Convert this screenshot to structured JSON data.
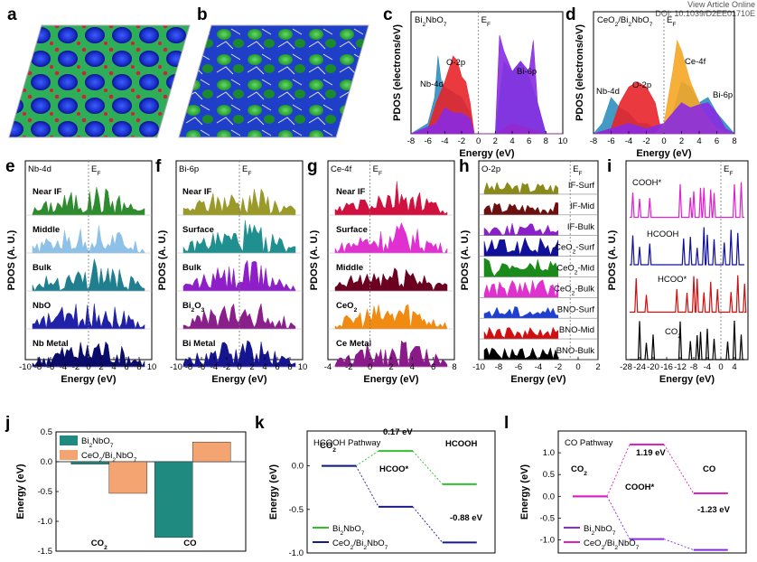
{
  "header": {
    "view_article": "View Article Online",
    "doi": "DOI: 10.1039/D2EE01710E"
  },
  "panels": {
    "a": "a",
    "b": "b",
    "c": "c",
    "d": "d",
    "e": "e",
    "f": "f",
    "g": "g",
    "h": "h",
    "i": "i",
    "j": "j",
    "k": "k",
    "l": "l"
  },
  "chart_data": [
    {
      "panel": "c",
      "type": "area",
      "legend": "Bi2NbO7",
      "xlabel": "Energy (eV)",
      "ylabel": "PDOS (electrons/eV)",
      "xlim": [
        -8,
        10
      ],
      "xticks": [
        -8,
        -6,
        -4,
        -2,
        0,
        2,
        4,
        6,
        8,
        10
      ],
      "fermi_label": "EF",
      "series": [
        {
          "name": "Nb-4d",
          "color": "#2f8fbf",
          "x": [
            -8,
            -6,
            -5.2,
            -4.8,
            -4.4,
            -4,
            -3,
            -2,
            -1,
            -0.5,
            2,
            3,
            4,
            5,
            6,
            7,
            8,
            10
          ],
          "y": [
            0,
            0.1,
            0.35,
            0.75,
            0.5,
            0.45,
            0.4,
            0.35,
            0.2,
            0,
            0,
            0.7,
            0.6,
            0.7,
            0.55,
            0.3,
            0,
            0
          ]
        },
        {
          "name": "O-2p",
          "color": "#e8242a",
          "x": [
            -8,
            -6,
            -5,
            -4,
            -3,
            -2.5,
            -2,
            -1.5,
            -1,
            -0.5,
            2,
            4,
            6,
            8,
            10
          ],
          "y": [
            0,
            0.05,
            0.3,
            0.5,
            0.75,
            0.7,
            0.55,
            0.5,
            0.3,
            0,
            0,
            0.1,
            0.05,
            0,
            0
          ]
        },
        {
          "name": "Bi-6p",
          "color": "#8a2be2",
          "x": [
            -8,
            -5,
            -4,
            -3,
            -2,
            -1,
            -0.5,
            2,
            2.5,
            3,
            4,
            5,
            6,
            6.5,
            7,
            8,
            10
          ],
          "y": [
            0,
            0.1,
            0.25,
            0.2,
            0.2,
            0.15,
            0,
            0,
            0.95,
            0.8,
            0.6,
            0.7,
            0.6,
            0.9,
            0.3,
            0,
            0
          ]
        }
      ],
      "annotations": [
        "Nb-4d",
        "O-2p",
        "Bi-6p"
      ]
    },
    {
      "panel": "d",
      "type": "area",
      "legend": "CeO2/Bi2NbO7",
      "xlabel": "Energy (eV)",
      "ylabel": "PDOS (electrons/eV)",
      "xlim": [
        -8,
        8
      ],
      "xticks": [
        -8,
        -6,
        -4,
        -2,
        0,
        2,
        4,
        6,
        8
      ],
      "fermi_label": "EF",
      "series": [
        {
          "name": "Nb-4d",
          "color": "#2f8fbf",
          "x": [
            -8,
            -7,
            -6,
            -5,
            -4,
            -3,
            -2,
            -1,
            0,
            1,
            2,
            3,
            4,
            5,
            6,
            8
          ],
          "y": [
            0,
            0.1,
            0.35,
            0.25,
            0.2,
            0.1,
            0.1,
            0.05,
            0.05,
            0.2,
            0.5,
            0.45,
            0.3,
            0.35,
            0.2,
            0
          ]
        },
        {
          "name": "O-2p",
          "color": "#e8242a",
          "x": [
            -8,
            -6,
            -5,
            -4,
            -3,
            -2,
            -1,
            -0.5,
            0,
            2,
            4,
            6,
            8
          ],
          "y": [
            0,
            0.05,
            0.3,
            0.45,
            0.5,
            0.45,
            0.3,
            0.1,
            0,
            0.05,
            0.05,
            0,
            0
          ]
        },
        {
          "name": "Ce-4f",
          "color": "#f5a623",
          "x": [
            -8,
            -1,
            0,
            1,
            1.5,
            2,
            2.5,
            3,
            4,
            5,
            6,
            8
          ],
          "y": [
            0,
            0,
            0.1,
            0.6,
            0.9,
            0.8,
            0.65,
            0.5,
            0.3,
            0.15,
            0.05,
            0
          ]
        },
        {
          "name": "Bi-6p",
          "color": "#8a2be2",
          "x": [
            -8,
            -6,
            -4,
            -2,
            0,
            1,
            2,
            3,
            4,
            5,
            6,
            7,
            8
          ],
          "y": [
            0,
            0.05,
            0.1,
            0.05,
            0.1,
            0.2,
            0.3,
            0.25,
            0.28,
            0.3,
            0.2,
            0.05,
            0
          ]
        }
      ],
      "annotations": [
        "Nb-4d",
        "O-2p",
        "Ce-4f",
        "Bi-6p"
      ]
    },
    {
      "panel": "e",
      "type": "area",
      "title": "Nb-4d",
      "xlabel": "Energy (eV)",
      "ylabel": "PDOS (A. U.)",
      "xlim": [
        -10,
        10
      ],
      "xticks": [
        -10,
        -8,
        -6,
        -4,
        -2,
        0,
        2,
        4,
        6,
        8,
        10
      ],
      "fermi_label": "EF",
      "series": [
        {
          "name": "Near IF",
          "color": "#2e8b2e"
        },
        {
          "name": "Middle",
          "color": "#8ec1e8"
        },
        {
          "name": "Bulk",
          "color": "#1f7f8f"
        },
        {
          "name": "NbO",
          "color": "#2020a8"
        },
        {
          "name": "Nb Metal",
          "color": "#0b0b6b"
        }
      ]
    },
    {
      "panel": "f",
      "type": "area",
      "title": "Bi-6p",
      "xlabel": "Energy (eV)",
      "ylabel": "PDOS (A. U.)",
      "xlim": [
        -10,
        10
      ],
      "xticks": [
        -10,
        -8,
        -6,
        -4,
        -2,
        0,
        2,
        4,
        6,
        8,
        10
      ],
      "fermi_label": "EF",
      "series": [
        {
          "name": "Near IF",
          "color": "#9a9a2a"
        },
        {
          "name": "Surface",
          "color": "#1f8f8f"
        },
        {
          "name": "Bulk",
          "color": "#8e1ec8"
        },
        {
          "name": "Bi2O3",
          "color": "#8a1e8a"
        },
        {
          "name": "Bi Metal",
          "color": "#15158f"
        }
      ]
    },
    {
      "panel": "g",
      "type": "area",
      "title": "Ce-4f",
      "xlabel": "Energy (eV)",
      "ylabel": "PDOS (A. U.)",
      "xlim": [
        -4,
        8
      ],
      "xticks": [
        -4,
        -2,
        0,
        2,
        4,
        6,
        8
      ],
      "fermi_label": "EF",
      "series": [
        {
          "name": "Near IF",
          "color": "#d0103e"
        },
        {
          "name": "Surface",
          "color": "#e030d0"
        },
        {
          "name": "Middle",
          "color": "#6b0020"
        },
        {
          "name": "CeO2",
          "color": "#f08a10"
        },
        {
          "name": "Ce Metal",
          "color": "#8a1a8a"
        }
      ]
    },
    {
      "panel": "h",
      "type": "area",
      "title": "O-2p",
      "xlabel": "Energy (eV)",
      "ylabel": "PDOS (A. U.)",
      "xlim": [
        -10,
        2
      ],
      "xticks": [
        -10,
        -8,
        -6,
        -4,
        -2,
        0,
        2
      ],
      "fermi_label": "EF",
      "series": [
        {
          "name": "IF-Surf",
          "color": "#8a8a1a"
        },
        {
          "name": "IF-Mid",
          "color": "#6b1010"
        },
        {
          "name": "IF-Bulk",
          "color": "#8a20c8"
        },
        {
          "name": "CeO2-Surf",
          "color": "#10109a"
        },
        {
          "name": "CeO2-Mid",
          "color": "#1a8a1a"
        },
        {
          "name": "CeO2-Bulk",
          "color": "#e030d0"
        },
        {
          "name": "BNO-Surf",
          "color": "#1f3fd0"
        },
        {
          "name": "BNO-Mid",
          "color": "#d01010"
        },
        {
          "name": "BNO-Bulk",
          "color": "#000000"
        }
      ]
    },
    {
      "panel": "i",
      "type": "line",
      "xlabel": "Energy (eV)",
      "ylabel": "PDOS (A. U.)",
      "xlim": [
        -28,
        8
      ],
      "xticks": [
        -28,
        -24,
        -20,
        -16,
        -12,
        -8,
        -4,
        0,
        4
      ],
      "fermi_label": "EF",
      "series": [
        {
          "name": "COOH*",
          "color": "#e020d0"
        },
        {
          "name": "HCOOH",
          "color": "#1010a0"
        },
        {
          "name": "HCOO*",
          "color": "#d01010"
        },
        {
          "name": "CO2",
          "color": "#000000"
        }
      ]
    },
    {
      "panel": "j",
      "type": "bar",
      "ylabel": "Energy (eV)",
      "ylim": [
        -1.5,
        0.5
      ],
      "yticks": [
        0.5,
        0.0,
        -0.5,
        -1.0,
        -1.5
      ],
      "categories": [
        "CO2",
        "CO"
      ],
      "series": [
        {
          "name": "Bi2NbO7",
          "color": "#1f8a80",
          "values": [
            -0.04,
            -1.27
          ]
        },
        {
          "name": "CeO2/Bi2NbO7",
          "color": "#f4a470",
          "values": [
            -0.53,
            0.33
          ]
        }
      ],
      "legend": "top-left"
    },
    {
      "panel": "k",
      "type": "line",
      "title": "HCOOH Pathway",
      "ylabel": "Energy (eV)",
      "ylim": [
        -1.0,
        0.4
      ],
      "yticks": [
        0.0,
        -0.5,
        -1.0
      ],
      "states": [
        "CO2",
        "HCOO*",
        "HCOOH"
      ],
      "series": [
        {
          "name": "Bi2NbO7",
          "color": "#2ec02e",
          "values": [
            0.0,
            0.17,
            -0.21
          ]
        },
        {
          "name": "CeO2/Bi2NbO7",
          "color": "#1a1a8f",
          "values": [
            0.0,
            -0.47,
            -0.88
          ]
        }
      ],
      "annotations": [
        "0.17 eV",
        "-0.88 eV"
      ],
      "legend": "bottom-left"
    },
    {
      "panel": "l",
      "type": "line",
      "title": "CO Pathway",
      "ylabel": "Energy (eV)",
      "ylim": [
        -1.3,
        1.5
      ],
      "yticks": [
        1.0,
        0.5,
        0.0,
        -0.5,
        -1.0
      ],
      "states": [
        "CO2",
        "COOH*",
        "CO"
      ],
      "series": [
        {
          "name": "Bi2NbO7",
          "color": "#8a2be2",
          "values": [
            0.0,
            -0.98,
            -1.23
          ]
        },
        {
          "name": "CeO2/Bi2NbO7",
          "color": "#e020c0",
          "values": [
            0.0,
            1.19,
            0.07
          ]
        }
      ],
      "annotations": [
        "1.19 eV",
        "-1.23 eV"
      ],
      "legend": "bottom-left"
    }
  ]
}
